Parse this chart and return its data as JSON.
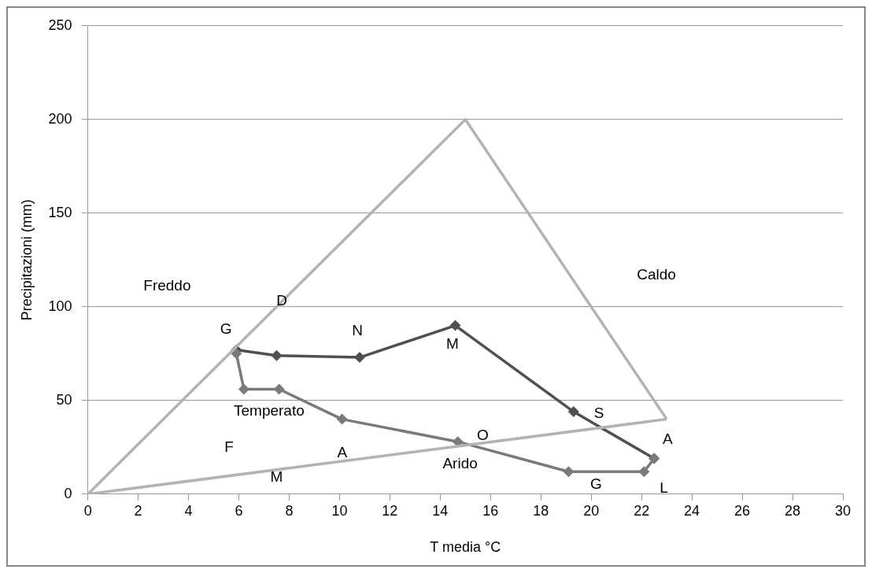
{
  "chart_data": {
    "type": "line",
    "xlabel": "T media °C",
    "ylabel": "Precipitazioni (mm)",
    "xlim": [
      0,
      30
    ],
    "xticks": [
      0,
      2,
      4,
      6,
      8,
      10,
      12,
      14,
      16,
      18,
      20,
      22,
      24,
      26,
      28,
      30
    ],
    "ylim": [
      0,
      250
    ],
    "yticks": [
      0,
      50,
      100,
      150,
      200,
      250
    ],
    "grid": "y",
    "legend": false,
    "marker": "diamond",
    "line_style": "solid",
    "series": [
      {
        "marker": "none",
        "color": "#b3b3b3",
        "x": [
          0,
          15,
          23
        ],
        "values": [
          0,
          200,
          40
        ]
      },
      {
        "marker": "none",
        "color": "#b3b3b3",
        "x": [
          0,
          23
        ],
        "values": [
          0,
          40
        ]
      },
      {
        "color": "#7a7a7a",
        "x": [
          5.9,
          6.2,
          7.6,
          10.1,
          14.7,
          19.1,
          22.1,
          22.5
        ],
        "values": [
          75,
          56,
          56,
          40,
          28,
          12,
          12,
          19
        ]
      },
      {
        "color": "#505050",
        "x": [
          22.5,
          19.3,
          14.6,
          10.8,
          7.5,
          5.9
        ],
        "values": [
          19,
          44,
          90,
          73,
          74,
          77
        ]
      }
    ],
    "annotations": [
      "Freddo",
      "Caldo",
      "Temperato",
      "Arido",
      "G",
      "F",
      "M",
      "A",
      "M",
      "G",
      "L",
      "A",
      "S",
      "O",
      "N",
      "D"
    ]
  }
}
